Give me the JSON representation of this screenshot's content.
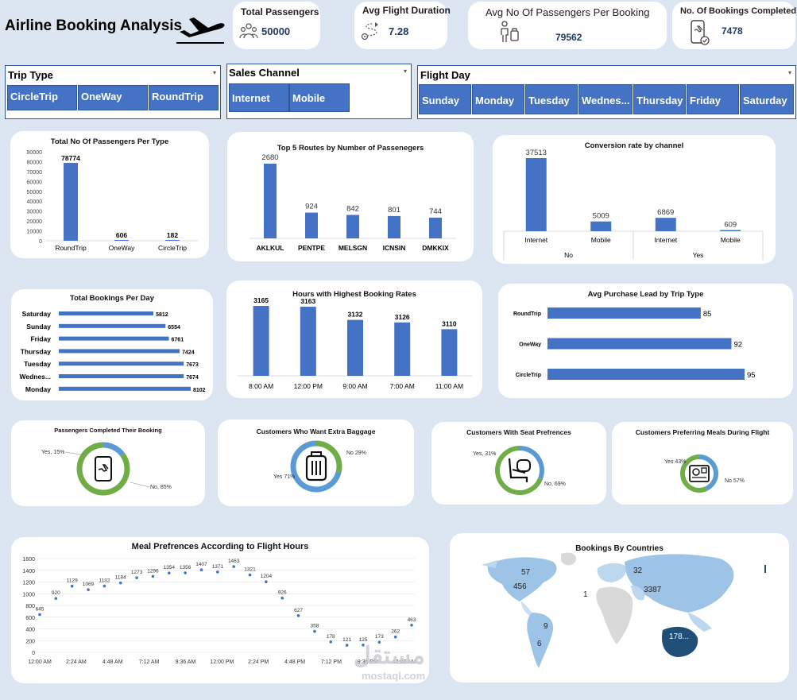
{
  "header": {
    "title": "Airline Booking Analysis"
  },
  "kpis": [
    {
      "title": "Total Passengers",
      "value": "50000",
      "icon": "passengers-icon"
    },
    {
      "title": "Avg Flight Duration",
      "value": "7.28",
      "icon": "route-icon"
    },
    {
      "title": "Avg No Of Passengers Per Booking",
      "value": "79562",
      "icon": "traveler-icon"
    },
    {
      "title": "No. Of Bookings Completed",
      "value": "7478",
      "icon": "phone-booking-icon"
    }
  ],
  "slicers": {
    "trip_type": {
      "title": "Trip Type",
      "options": [
        "CircleTrip",
        "OneWay",
        "RoundTrip"
      ]
    },
    "sales_channel": {
      "title": "Sales Channel",
      "options": [
        "Internet",
        "Mobile"
      ]
    },
    "flight_day": {
      "title": "Flight Day",
      "options": [
        "Sunday",
        "Monday",
        "Tuesday",
        "Wednes...",
        "Thursday",
        "Friday",
        "Saturday"
      ]
    }
  },
  "colors": {
    "bar": "#4472c4",
    "green": "#70ad47",
    "lightblue": "#5b9bd5",
    "background": "#dce6f2"
  },
  "chart_data": [
    {
      "id": "passengers_per_type",
      "type": "bar",
      "title": "Total No Of Passengers Per Type",
      "categories": [
        "RoundTrip",
        "OneWay",
        "CircleTrip"
      ],
      "values": [
        78774,
        606,
        182
      ],
      "ylim": [
        0,
        90000
      ],
      "yticks": [
        0,
        10000,
        20000,
        30000,
        40000,
        50000,
        60000,
        70000,
        80000,
        90000
      ]
    },
    {
      "id": "top_routes",
      "type": "bar",
      "title": "Top 5 Routes by Number of Passenegers",
      "categories": [
        "AKLKUL",
        "PENTPE",
        "MELSGN",
        "ICNSIN",
        "DMKKIX"
      ],
      "values": [
        2680,
        924,
        842,
        801,
        744
      ]
    },
    {
      "id": "conversion_rate",
      "type": "bar",
      "title": "Conversion rate by channel",
      "categories": [
        "Internet",
        "Mobile",
        "Internet",
        "Mobile"
      ],
      "groups": [
        "No",
        "Yes"
      ],
      "values": [
        37513,
        5009,
        6869,
        609
      ]
    },
    {
      "id": "bookings_per_day",
      "type": "bar",
      "orientation": "horizontal",
      "title": "Total Bookings Per Day",
      "categories": [
        "Saturday",
        "Sunday",
        "Friday",
        "Thursday",
        "Tuesday",
        "Wednes...",
        "Monday"
      ],
      "values": [
        5812,
        6554,
        6761,
        7424,
        7673,
        7674,
        8102
      ]
    },
    {
      "id": "booking_hours",
      "type": "bar",
      "title": "Hours with Highest Booking Rates",
      "categories": [
        "8:00 AM",
        "12:00 PM",
        "9:00 AM",
        "7:00 AM",
        "11:00 AM"
      ],
      "values": [
        3165,
        3163,
        3132,
        3126,
        3110
      ]
    },
    {
      "id": "purchase_lead",
      "type": "bar",
      "orientation": "horizontal",
      "title": "Avg Purchase Lead by Trip  Type",
      "categories": [
        "RoundTrip",
        "OneWay",
        "CircleTrip"
      ],
      "values": [
        85,
        92,
        95
      ]
    },
    {
      "id": "completed_booking",
      "type": "pie",
      "title": "Passengers Completed Their Booking",
      "labels": [
        "Yes, 15%",
        "No, 85%"
      ],
      "values": [
        15,
        85
      ]
    },
    {
      "id": "extra_baggage",
      "type": "pie",
      "title": "Customers Who Want Extra Baggage",
      "labels": [
        "No 29%",
        "Yes 71%"
      ],
      "values": [
        29,
        71
      ]
    },
    {
      "id": "seat_preferences",
      "type": "pie",
      "title": "Customers With  Seat Prefrences",
      "labels": [
        "Yes, 31%",
        "No, 69%"
      ],
      "values": [
        31,
        69
      ]
    },
    {
      "id": "meal_preferences",
      "type": "pie",
      "title": "Customers Preferring  Meals During Flight",
      "labels": [
        "Yes 43%",
        "No 57%"
      ],
      "values": [
        43,
        57
      ]
    },
    {
      "id": "meal_by_hour",
      "type": "scatter",
      "title": "Meal Prefrences According to Flight Hours",
      "x": [
        0,
        1,
        2,
        3,
        4,
        5,
        6,
        7,
        8,
        9,
        10,
        11,
        12,
        13,
        14,
        15,
        16,
        17,
        18,
        19,
        20,
        21,
        22,
        23
      ],
      "values": [
        645,
        920,
        1129,
        1069,
        1132,
        1184,
        1273,
        1296,
        1354,
        1356,
        1407,
        1371,
        1463,
        1321,
        1204,
        926,
        627,
        358,
        178,
        121,
        125,
        173,
        262,
        463
      ],
      "ylim": [
        0,
        1600
      ],
      "yticks": [
        0,
        200,
        400,
        600,
        800,
        1000,
        1200,
        1400,
        1600
      ],
      "xticklabels": [
        "12:00 AM",
        "2:24 AM",
        "4:48 AM",
        "7:12 AM",
        "9:36 AM",
        "12:00 PM",
        "2:24 PM",
        "4:48 PM",
        "7:12 PM",
        "9:36 PM",
        "12:00 AM"
      ]
    },
    {
      "id": "bookings_by_country",
      "type": "map",
      "title": "Bookings By Countries",
      "labels": [
        "57",
        "456",
        "32",
        "3387",
        "1",
        "9",
        "6",
        "178..."
      ]
    }
  ],
  "watermark": {
    "text": "مستقل",
    "sub": "mostaql.com"
  }
}
